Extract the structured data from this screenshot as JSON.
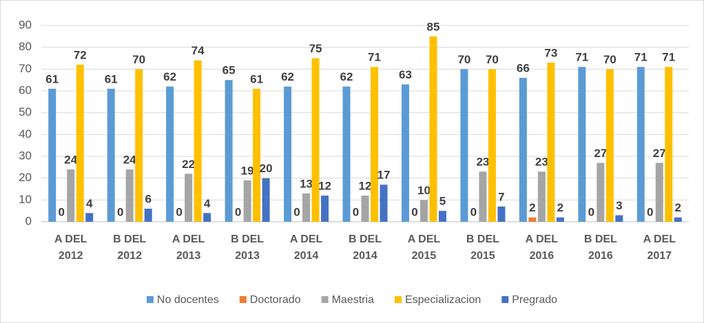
{
  "chart_data": {
    "type": "bar",
    "categories": [
      "A DEL 2012",
      "B DEL 2012",
      "A DEL 2013",
      "B DEL 2013",
      "A DEL 2014",
      "B DEL 2014",
      "A DEL 2015",
      "B DEL 2015",
      "A  DEL 2016",
      "B DEL 2016",
      "A  DEL 2017"
    ],
    "series": [
      {
        "name": "No docentes",
        "color": "#5b9bd5",
        "values": [
          61,
          61,
          62,
          65,
          62,
          62,
          63,
          70,
          66,
          71,
          71
        ]
      },
      {
        "name": "Doctorado",
        "color": "#ed7d31",
        "values": [
          0,
          0,
          0,
          0,
          0,
          0,
          0,
          0,
          2,
          0,
          0
        ]
      },
      {
        "name": "Maestria",
        "color": "#a5a5a5",
        "values": [
          24,
          24,
          22,
          19,
          13,
          12,
          10,
          23,
          23,
          27,
          27
        ]
      },
      {
        "name": "Especializacion",
        "color": "#ffc000",
        "values": [
          72,
          70,
          74,
          61,
          75,
          71,
          85,
          70,
          73,
          70,
          71
        ]
      },
      {
        "name": "Pregrado",
        "color": "#4472c4",
        "values": [
          4,
          6,
          4,
          20,
          12,
          17,
          5,
          7,
          2,
          3,
          2
        ]
      }
    ],
    "ylim": [
      0,
      90
    ],
    "yticks": [
      0,
      10,
      20,
      30,
      40,
      50,
      60,
      70,
      80,
      90
    ],
    "grid": true,
    "legend": "bottom"
  }
}
